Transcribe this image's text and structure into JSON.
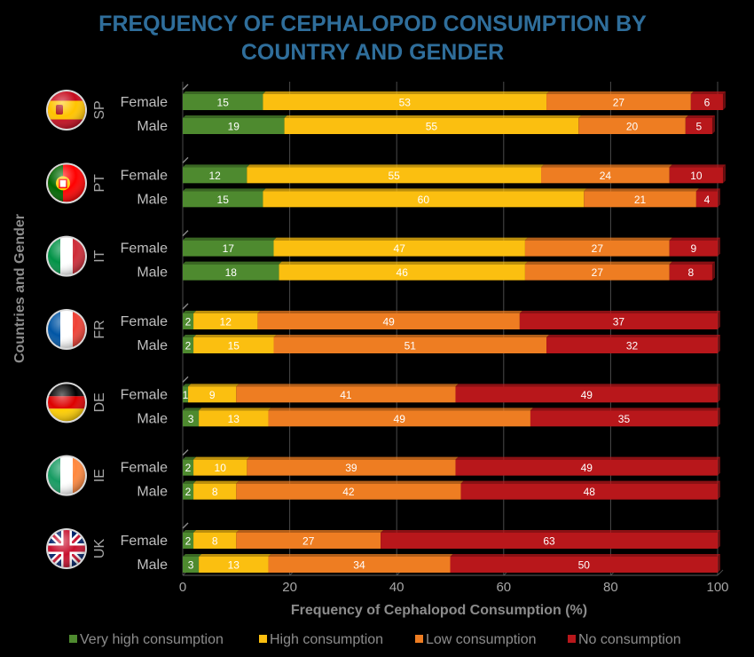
{
  "chart_data": {
    "type": "bar",
    "orientation": "horizontal",
    "stacked": true,
    "title_lines": [
      "FREQUENCY OF CEPHALOPOD CONSUMPTION BY",
      "COUNTRY AND GENDER"
    ],
    "xlabel": "Frequency of Cephalopod Consumption (%)",
    "ylabel": "Countries and Gender",
    "xlim": [
      0,
      100
    ],
    "xticks": [
      0,
      20,
      40,
      60,
      80,
      100
    ],
    "legend_position": "bottom",
    "series": [
      {
        "name": "Very high consumption",
        "color": "#4e8a2f"
      },
      {
        "name": "High consumption",
        "color": "#fbbf10"
      },
      {
        "name": "Low consumption",
        "color": "#ee7d22"
      },
      {
        "name": "No consumption",
        "color": "#b8171b"
      }
    ],
    "groups": [
      {
        "country": "SP",
        "flag": "spain-flag-icon",
        "rows": [
          {
            "gender": "Female",
            "values": [
              15,
              53,
              27,
              6
            ]
          },
          {
            "gender": "Male",
            "values": [
              19,
              55,
              20,
              5
            ]
          }
        ]
      },
      {
        "country": "PT",
        "flag": "portugal-flag-icon",
        "rows": [
          {
            "gender": "Female",
            "values": [
              12,
              55,
              24,
              10
            ]
          },
          {
            "gender": "Male",
            "values": [
              15,
              60,
              21,
              4
            ]
          }
        ]
      },
      {
        "country": "IT",
        "flag": "italy-flag-icon",
        "rows": [
          {
            "gender": "Female",
            "values": [
              17,
              47,
              27,
              9
            ]
          },
          {
            "gender": "Male",
            "values": [
              18,
              46,
              27,
              8
            ]
          }
        ]
      },
      {
        "country": "FR",
        "flag": "france-flag-icon",
        "rows": [
          {
            "gender": "Female",
            "values": [
              2,
              12,
              49,
              37
            ]
          },
          {
            "gender": "Male",
            "values": [
              2,
              15,
              51,
              32
            ]
          }
        ]
      },
      {
        "country": "DE",
        "flag": "germany-flag-icon",
        "rows": [
          {
            "gender": "Female",
            "values": [
              1,
              9,
              41,
              49
            ]
          },
          {
            "gender": "Male",
            "values": [
              3,
              13,
              49,
              35
            ]
          }
        ]
      },
      {
        "country": "IE",
        "flag": "ireland-flag-icon",
        "rows": [
          {
            "gender": "Female",
            "values": [
              2,
              10,
              39,
              49
            ]
          },
          {
            "gender": "Male",
            "values": [
              2,
              8,
              42,
              48
            ]
          }
        ]
      },
      {
        "country": "UK",
        "flag": "uk-flag-icon",
        "rows": [
          {
            "gender": "Female",
            "values": [
              2,
              8,
              27,
              63
            ]
          },
          {
            "gender": "Male",
            "values": [
              3,
              13,
              34,
              50
            ]
          }
        ]
      }
    ]
  }
}
